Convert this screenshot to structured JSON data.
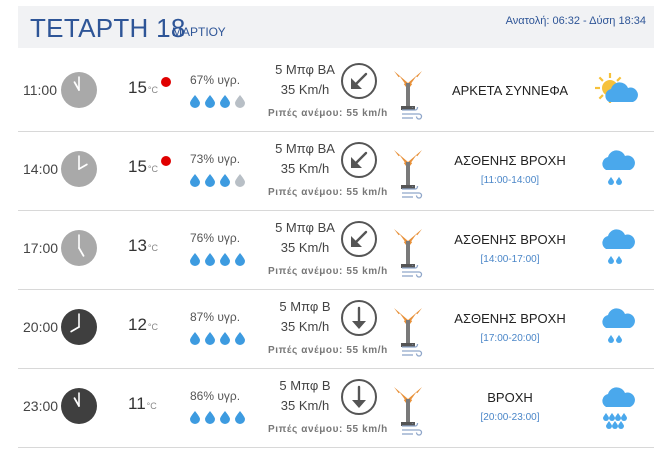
{
  "header": {
    "day": "ΤΕΤΑΡΤΗ 18",
    "month": "ΜΑΡΤΙΟΥ",
    "sunrise_sunset": "Ανατολή: 06:32 - Δύση 18:34"
  },
  "gust_label": "Ριπές ανέμου: 55 km/h",
  "temp_unit": "°C",
  "rows": [
    {
      "time": "11:00",
      "clock": "clock-icon-light",
      "temp": "15",
      "warm_dot": true,
      "humidity": "67% υγρ.",
      "rain_drops_filled": 3,
      "wind_dir": "5 Μπφ ΒΑ",
      "wind_speed": "35 Km/h",
      "arrow": "arrow-southwest-icon",
      "desc": "ΑΡΚΕΤΑ ΣΥΝΝΕΦΑ",
      "range": "",
      "weather_icon": "partly-cloudy-icon"
    },
    {
      "time": "14:00",
      "clock": "clock-icon-light",
      "temp": "15",
      "warm_dot": true,
      "humidity": "73% υγρ.",
      "rain_drops_filled": 3,
      "wind_dir": "5 Μπφ ΒΑ",
      "wind_speed": "35 Km/h",
      "arrow": "arrow-southwest-icon",
      "desc": "ΑΣΘΕΝΗΣ ΒΡΟΧΗ",
      "range": "[11:00-14:00]",
      "weather_icon": "light-rain-icon"
    },
    {
      "time": "17:00",
      "clock": "clock-icon-light",
      "temp": "13",
      "warm_dot": false,
      "humidity": "76% υγρ.",
      "rain_drops_filled": 4,
      "wind_dir": "5 Μπφ ΒΑ",
      "wind_speed": "35 Km/h",
      "arrow": "arrow-southwest-icon",
      "desc": "ΑΣΘΕΝΗΣ ΒΡΟΧΗ",
      "range": "[14:00-17:00]",
      "weather_icon": "light-rain-icon"
    },
    {
      "time": "20:00",
      "clock": "clock-icon-dark",
      "temp": "12",
      "warm_dot": false,
      "humidity": "87% υγρ.",
      "rain_drops_filled": 4,
      "wind_dir": "5 Μπφ Β",
      "wind_speed": "35 Km/h",
      "arrow": "arrow-south-icon",
      "desc": "ΑΣΘΕΝΗΣ ΒΡΟΧΗ",
      "range": "[17:00-20:00]",
      "weather_icon": "light-rain-icon"
    },
    {
      "time": "23:00",
      "clock": "clock-icon-dark",
      "temp": "11",
      "warm_dot": false,
      "humidity": "86% υγρ.",
      "rain_drops_filled": 4,
      "wind_dir": "5 Μπφ Β",
      "wind_speed": "35 Km/h",
      "arrow": "arrow-south-icon",
      "desc": "ΒΡΟΧΗ",
      "range": "[20:00-23:00]",
      "weather_icon": "rain-icon"
    }
  ],
  "colors": {
    "title": "#2e5597",
    "drop_filled": "#3d9be0",
    "drop_empty": "#b8bfc6",
    "warm_dot": "#e00000",
    "cloud": "#4aa8ec",
    "sun": "#f6c13b",
    "range": "#4a86c8"
  }
}
